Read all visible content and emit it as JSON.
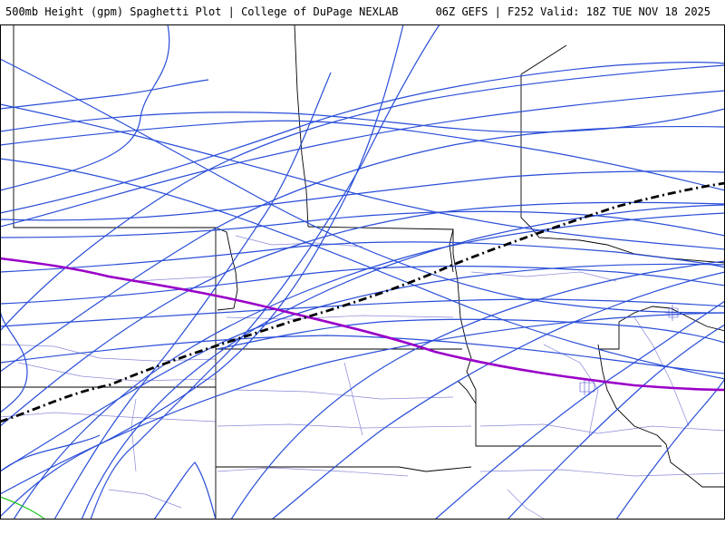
{
  "header": {
    "product": "500mb Height (gpm) Spaghetti Plot | College of DuPage NEXLAB",
    "run_info": "06Z GEFS | F252 Valid: 18Z TUE NOV 18 2025"
  },
  "map": {
    "field": "500mb Height (gpm)",
    "plot_type": "spaghetti",
    "member_count": 20,
    "colors": {
      "members": "#2a4ed8",
      "highlight": "#9a00c8",
      "mean": "#000000",
      "green_member": "#18c418",
      "state_border": "#000000",
      "county_border": "#7c7cd8"
    },
    "icons": [
      "map-border-lines"
    ]
  }
}
